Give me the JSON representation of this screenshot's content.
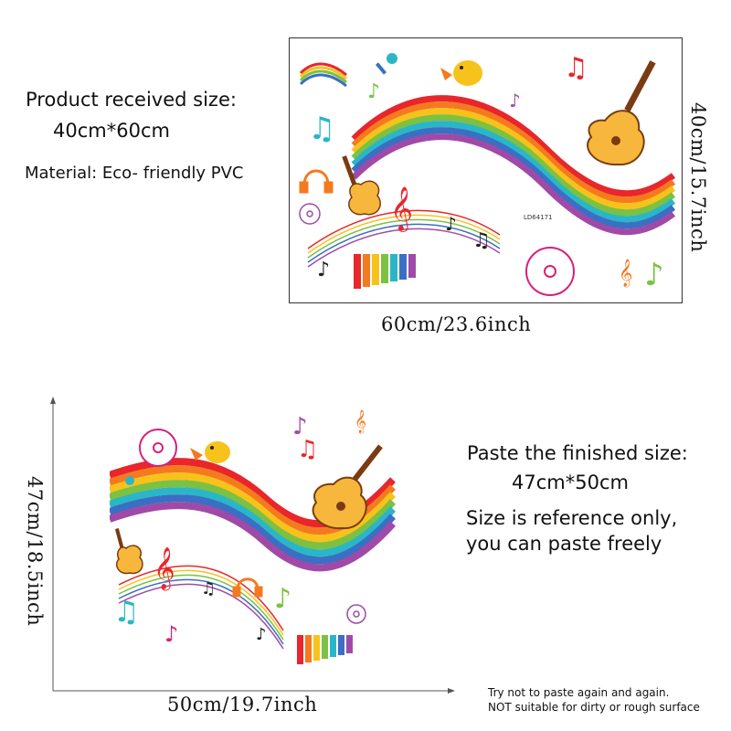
{
  "received": {
    "heading": "Product received size:",
    "size": "40cm*60cm",
    "material": "Material: Eco- friendly PVC",
    "width_label": "60cm/23.6inch",
    "height_label": "40cm/15.7inch",
    "sheet_code": "LD64171"
  },
  "finished": {
    "heading": "Paste the finished size:",
    "size": "47cm*50cm",
    "note_line1": "Size is reference only,",
    "note_line2": "you can paste freely",
    "width_label": "50cm/19.7inch",
    "height_label": "47cm/18.5inch"
  },
  "warning": {
    "line1": "Try not to paste again and again.",
    "line2": "NOT suitable for dirty or rough surface"
  },
  "icons": {
    "guitar": "guitar-icon",
    "bird": "bird-icon",
    "cd": "cd-disc-icon",
    "headphones": "headphones-icon",
    "microphone": "microphone-icon",
    "xylophone": "xylophone-icon",
    "treble_clef": "treble-clef-icon",
    "music_note": "music-note-icon"
  },
  "colors": {
    "rainbow": [
      "#e8262b",
      "#f47a20",
      "#f8c21c",
      "#7cc142",
      "#2bb6c8",
      "#3a6fc4",
      "#a04aa8"
    ],
    "frame": "#333333"
  }
}
